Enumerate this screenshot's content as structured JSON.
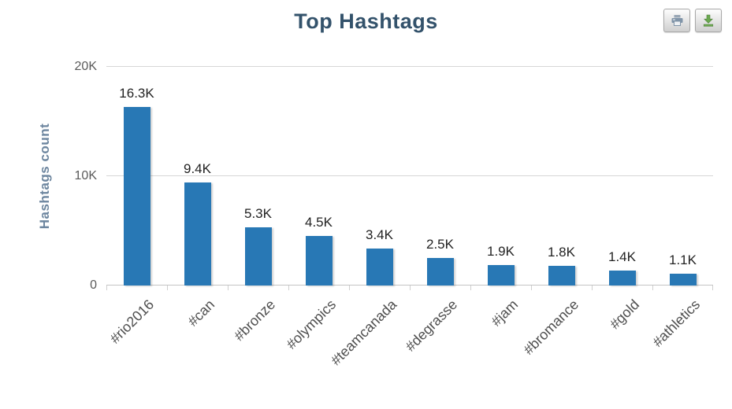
{
  "title": "Top Hashtags",
  "toolbar": {
    "buttons": [
      {
        "icon": "print-icon"
      },
      {
        "icon": "download-icon"
      }
    ]
  },
  "colors": {
    "title": "#33526b",
    "axis_title": "#6d869f",
    "tick_label": "#5a5a5a",
    "grid": "#d6d6d6",
    "bar": "#2878b5",
    "download_icon_green": "#6aa84f",
    "print_icon_gray_blue": "#8094a8"
  },
  "chart_data": {
    "type": "bar",
    "title": "Top Hashtags",
    "categories": [
      "#rio2016",
      "#can",
      "#bronze",
      "#olympics",
      "#teamcanada",
      "#degrasse",
      "#jam",
      "#bromance",
      "#gold",
      "#athletics"
    ],
    "values": [
      16300,
      9400,
      5300,
      4500,
      3400,
      2500,
      1900,
      1800,
      1400,
      1100
    ],
    "data_labels": [
      "16.3K",
      "9.4K",
      "5.3K",
      "4.5K",
      "3.4K",
      "2.5K",
      "1.9K",
      "1.8K",
      "1.4K",
      "1.1K"
    ],
    "xlabel": "",
    "ylabel": "Hashtags count",
    "ylim": [
      0,
      20000
    ],
    "yticks": [
      {
        "value": 0,
        "label": "0"
      },
      {
        "value": 10000,
        "label": "10K"
      },
      {
        "value": 20000,
        "label": "20K"
      }
    ],
    "grid": true,
    "legend": "none",
    "bar_color": "#2878b5",
    "x_label_rotation": -45
  }
}
